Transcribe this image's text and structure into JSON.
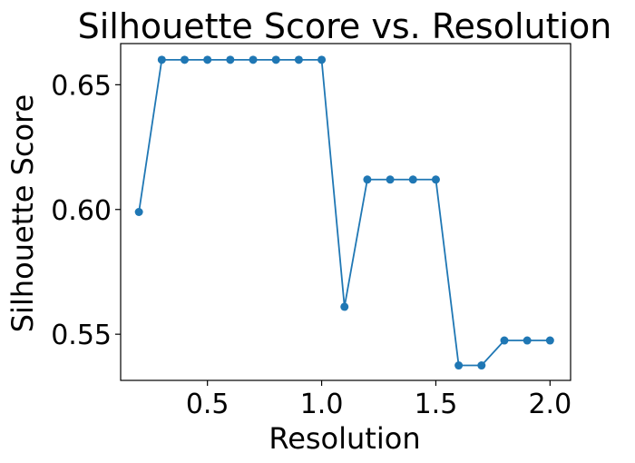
{
  "chart_data": {
    "type": "line",
    "title": "Silhouette Score vs. Resolution",
    "xlabel": "Resolution",
    "ylabel": "Silhouette Score",
    "xlim": [
      0.12,
      2.09
    ],
    "ylim": [
      0.5315,
      0.6665
    ],
    "x_ticks": [
      0.5,
      1.0,
      1.5,
      2.0
    ],
    "x_tick_labels": [
      "0.5",
      "1.0",
      "1.5",
      "2.0"
    ],
    "y_ticks": [
      0.55,
      0.6,
      0.65
    ],
    "y_tick_labels": [
      "0.55",
      "0.60",
      "0.65"
    ],
    "grid": false,
    "legend": "none",
    "series": [
      {
        "color": "#1f77b4",
        "marker": "circle",
        "x": [
          0.2,
          0.3,
          0.4,
          0.5,
          0.6,
          0.7,
          0.8,
          0.9,
          1.0,
          1.1,
          1.2,
          1.3,
          1.4,
          1.5,
          1.6,
          1.7,
          1.8,
          1.9,
          2.0
        ],
        "y": [
          0.599,
          0.66,
          0.66,
          0.66,
          0.66,
          0.66,
          0.66,
          0.66,
          0.66,
          0.561,
          0.612,
          0.612,
          0.612,
          0.612,
          0.5375,
          0.5375,
          0.5475,
          0.5475,
          0.5475
        ]
      }
    ]
  }
}
